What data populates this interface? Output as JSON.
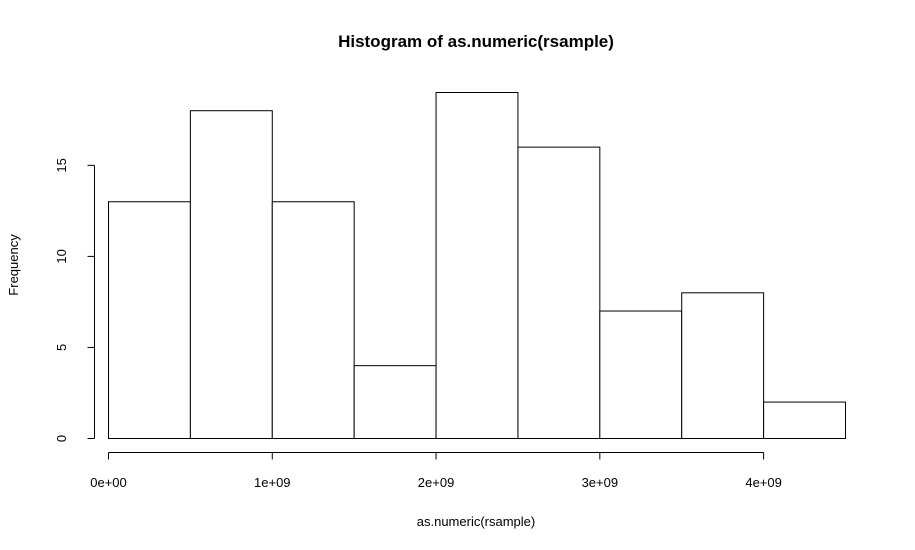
{
  "chart_data": {
    "type": "bar",
    "title": "Histogram of as.numeric(rsample)",
    "xlabel": "as.numeric(rsample)",
    "ylabel": "Frequency",
    "bins": [
      {
        "start": 0,
        "end": 500000000,
        "count": 13
      },
      {
        "start": 500000000,
        "end": 1000000000,
        "count": 18
      },
      {
        "start": 1000000000,
        "end": 1500000000,
        "count": 13
      },
      {
        "start": 1500000000,
        "end": 2000000000,
        "count": 4
      },
      {
        "start": 2000000000,
        "end": 2500000000,
        "count": 19
      },
      {
        "start": 2500000000,
        "end": 3000000000,
        "count": 16
      },
      {
        "start": 3000000000,
        "end": 3500000000,
        "count": 7
      },
      {
        "start": 3500000000,
        "end": 4000000000,
        "count": 8
      },
      {
        "start": 4000000000,
        "end": 4500000000,
        "count": 2
      }
    ],
    "x_ticks": [
      {
        "value": 0,
        "label": "0e+00"
      },
      {
        "value": 1000000000,
        "label": "1e+09"
      },
      {
        "value": 2000000000,
        "label": "2e+09"
      },
      {
        "value": 3000000000,
        "label": "3e+09"
      },
      {
        "value": 4000000000,
        "label": "4e+09"
      }
    ],
    "y_ticks": [
      {
        "value": 0,
        "label": "0"
      },
      {
        "value": 5,
        "label": "5"
      },
      {
        "value": 10,
        "label": "10"
      },
      {
        "value": 15,
        "label": "15"
      }
    ],
    "xlim": [
      0,
      4500000000
    ],
    "ylim": [
      0,
      19
    ],
    "grid": false,
    "legend": "none",
    "colors": {
      "bar_fill": "#ffffff",
      "bar_stroke": "#000000"
    }
  }
}
